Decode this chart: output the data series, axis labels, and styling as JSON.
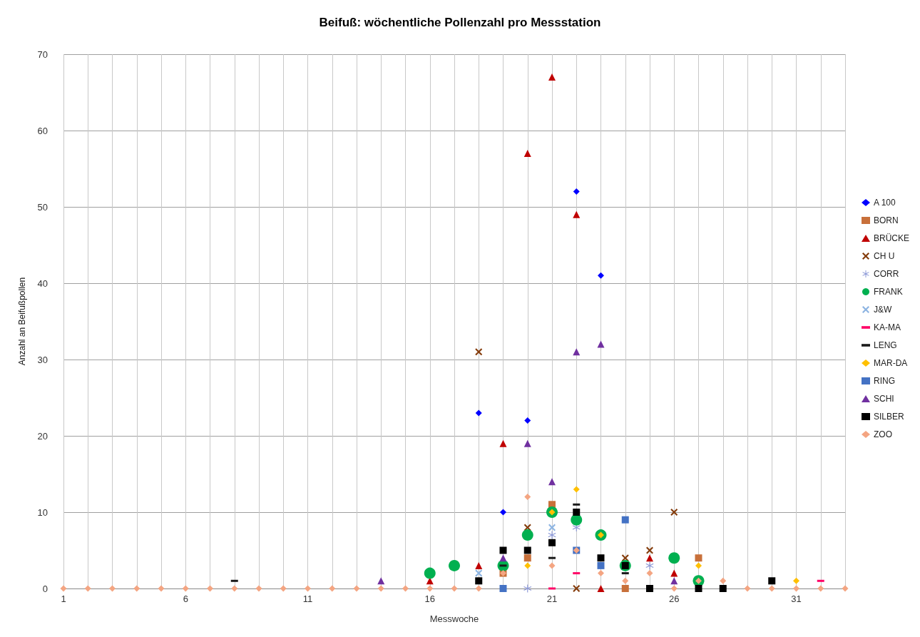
{
  "chart_data": {
    "type": "scatter",
    "title": "Beifuß: wöchentliche Pollenzahl pro Messstation",
    "xlabel": "Messwoche",
    "ylabel": "Anzahl an Beifußpollen",
    "x": [
      1,
      2,
      3,
      4,
      5,
      6,
      7,
      8,
      9,
      10,
      11,
      12,
      13,
      14,
      15,
      16,
      17,
      18,
      19,
      20,
      21,
      22,
      23,
      24,
      25,
      26,
      27,
      28,
      29,
      30,
      31,
      32,
      33
    ],
    "xlim": [
      1,
      33
    ],
    "xticks": [
      1,
      {
        "value": 2,
        "label": null
      },
      {
        "value": 3,
        "label": null
      },
      {
        "value": 4,
        "label": null
      },
      {
        "value": 5,
        "label": null
      },
      6,
      {
        "value": 7,
        "label": null
      },
      {
        "value": 8,
        "label": null
      },
      {
        "value": 9,
        "label": null
      },
      {
        "value": 10,
        "label": null
      },
      11,
      {
        "value": 12,
        "label": null
      },
      {
        "value": 13,
        "label": null
      },
      {
        "value": 14,
        "label": null
      },
      {
        "value": 15,
        "label": null
      },
      16,
      {
        "value": 17,
        "label": null
      },
      {
        "value": 18,
        "label": null
      },
      {
        "value": 19,
        "label": null
      },
      {
        "value": 20,
        "label": null
      },
      21,
      {
        "value": 22,
        "label": null
      },
      {
        "value": 23,
        "label": null
      },
      {
        "value": 24,
        "label": null
      },
      {
        "value": 25,
        "label": null
      },
      26,
      {
        "value": 27,
        "label": null
      },
      {
        "value": 28,
        "label": null
      },
      {
        "value": 29,
        "label": null
      },
      {
        "value": 30,
        "label": null
      },
      31,
      {
        "value": 32,
        "label": null
      },
      {
        "value": 33,
        "label": null
      }
    ],
    "ylim": [
      0,
      70
    ],
    "yticks": [
      0,
      10,
      20,
      30,
      40,
      50,
      60,
      70
    ],
    "grid": true,
    "legend": "right",
    "series": [
      {
        "name": "A 100",
        "color": "#0000ff",
        "marker": "diamond",
        "values": [
          null,
          null,
          null,
          null,
          null,
          null,
          null,
          null,
          null,
          null,
          null,
          null,
          null,
          null,
          null,
          null,
          null,
          23,
          10,
          22,
          null,
          52,
          41,
          null,
          null,
          null,
          null,
          null,
          null,
          null,
          null,
          null,
          null
        ]
      },
      {
        "name": "BORN",
        "color": "#c8703a",
        "marker": "square",
        "values": [
          null,
          null,
          null,
          null,
          null,
          null,
          null,
          null,
          null,
          null,
          null,
          null,
          null,
          null,
          null,
          null,
          null,
          null,
          2,
          4,
          11,
          null,
          null,
          0,
          null,
          null,
          4,
          null,
          null,
          null,
          null,
          null,
          null
        ]
      },
      {
        "name": "BRÜCKE",
        "color": "#c00000",
        "marker": "triangle",
        "values": [
          null,
          null,
          null,
          null,
          null,
          null,
          null,
          null,
          null,
          null,
          null,
          null,
          null,
          null,
          null,
          1,
          null,
          3,
          19,
          57,
          67,
          49,
          0,
          null,
          4,
          2,
          null,
          null,
          null,
          null,
          null,
          null,
          null
        ]
      },
      {
        "name": "CH U",
        "color": "#843c0c",
        "marker": "cross",
        "values": [
          null,
          null,
          null,
          null,
          null,
          null,
          null,
          null,
          null,
          null,
          null,
          null,
          null,
          null,
          null,
          null,
          null,
          31,
          null,
          8,
          null,
          0,
          null,
          4,
          5,
          10,
          null,
          null,
          null,
          null,
          null,
          null,
          null
        ]
      },
      {
        "name": "CORR",
        "color": "#8e9ad8",
        "marker": "star",
        "values": [
          null,
          null,
          null,
          null,
          null,
          null,
          null,
          null,
          null,
          null,
          null,
          null,
          null,
          null,
          null,
          null,
          null,
          null,
          null,
          0,
          7,
          8,
          null,
          null,
          3,
          null,
          null,
          null,
          null,
          null,
          null,
          null,
          null
        ]
      },
      {
        "name": "FRANK",
        "color": "#00b050",
        "marker": "circle",
        "values": [
          null,
          null,
          null,
          null,
          null,
          null,
          null,
          null,
          null,
          null,
          null,
          null,
          null,
          null,
          null,
          2,
          3,
          null,
          3,
          7,
          10,
          9,
          7,
          3,
          null,
          4,
          1,
          null,
          null,
          null,
          null,
          null,
          null
        ]
      },
      {
        "name": "J&W",
        "color": "#8db4e2",
        "marker": "cross",
        "values": [
          null,
          null,
          null,
          null,
          null,
          null,
          null,
          null,
          null,
          null,
          null,
          null,
          null,
          null,
          null,
          null,
          null,
          2,
          null,
          null,
          8,
          null,
          null,
          null,
          null,
          null,
          null,
          null,
          null,
          null,
          null,
          null,
          null
        ]
      },
      {
        "name": "KA-MA",
        "color": "#ff0066",
        "values": [
          null,
          null,
          null,
          null,
          null,
          null,
          null,
          null,
          null,
          null,
          null,
          null,
          null,
          null,
          null,
          null,
          null,
          null,
          null,
          null,
          0,
          2,
          null,
          null,
          null,
          null,
          null,
          null,
          null,
          null,
          null,
          1,
          null
        ]
      },
      {
        "name": "LENG",
        "color": "#1a1a1a",
        "values": [
          null,
          null,
          null,
          null,
          null,
          null,
          null,
          1,
          null,
          null,
          null,
          null,
          null,
          null,
          null,
          null,
          null,
          null,
          3,
          null,
          4,
          11,
          null,
          2,
          null,
          null,
          null,
          null,
          null,
          null,
          null,
          null,
          null
        ]
      },
      {
        "name": "MAR-DA",
        "color": "#ffc000",
        "marker": "diamond",
        "values": [
          null,
          null,
          null,
          null,
          null,
          null,
          null,
          null,
          null,
          null,
          null,
          null,
          null,
          null,
          null,
          null,
          null,
          null,
          null,
          3,
          10,
          13,
          7,
          null,
          null,
          null,
          3,
          null,
          null,
          null,
          1,
          null,
          null
        ]
      },
      {
        "name": "RING",
        "color": "#4472c4",
        "marker": "square",
        "values": [
          null,
          null,
          null,
          null,
          null,
          null,
          null,
          null,
          null,
          null,
          null,
          null,
          null,
          null,
          null,
          null,
          null,
          null,
          0,
          null,
          null,
          5,
          3,
          9,
          null,
          null,
          null,
          null,
          null,
          null,
          null,
          null,
          null
        ]
      },
      {
        "name": "SCHI",
        "color": "#7030a0",
        "marker": "triangle",
        "values": [
          null,
          null,
          null,
          null,
          null,
          null,
          null,
          null,
          null,
          null,
          null,
          null,
          null,
          1,
          null,
          null,
          null,
          null,
          4,
          19,
          14,
          31,
          32,
          null,
          null,
          1,
          null,
          null,
          null,
          null,
          null,
          null,
          null
        ]
      },
      {
        "name": "SILBER",
        "color": "#000000",
        "marker": "square",
        "values": [
          null,
          null,
          null,
          null,
          null,
          null,
          null,
          null,
          null,
          null,
          null,
          null,
          null,
          null,
          null,
          null,
          null,
          1,
          5,
          5,
          6,
          10,
          4,
          3,
          0,
          null,
          0,
          0,
          null,
          1,
          null,
          null,
          null
        ]
      },
      {
        "name": "ZOO",
        "color": "#f4a582",
        "marker": "diamond",
        "values": [
          0,
          0,
          0,
          0,
          0,
          0,
          0,
          0,
          0,
          0,
          0,
          0,
          0,
          0,
          0,
          0,
          0,
          0,
          2,
          12,
          3,
          5,
          2,
          1,
          2,
          0,
          1,
          1,
          0,
          0,
          0,
          0,
          0
        ]
      }
    ]
  }
}
